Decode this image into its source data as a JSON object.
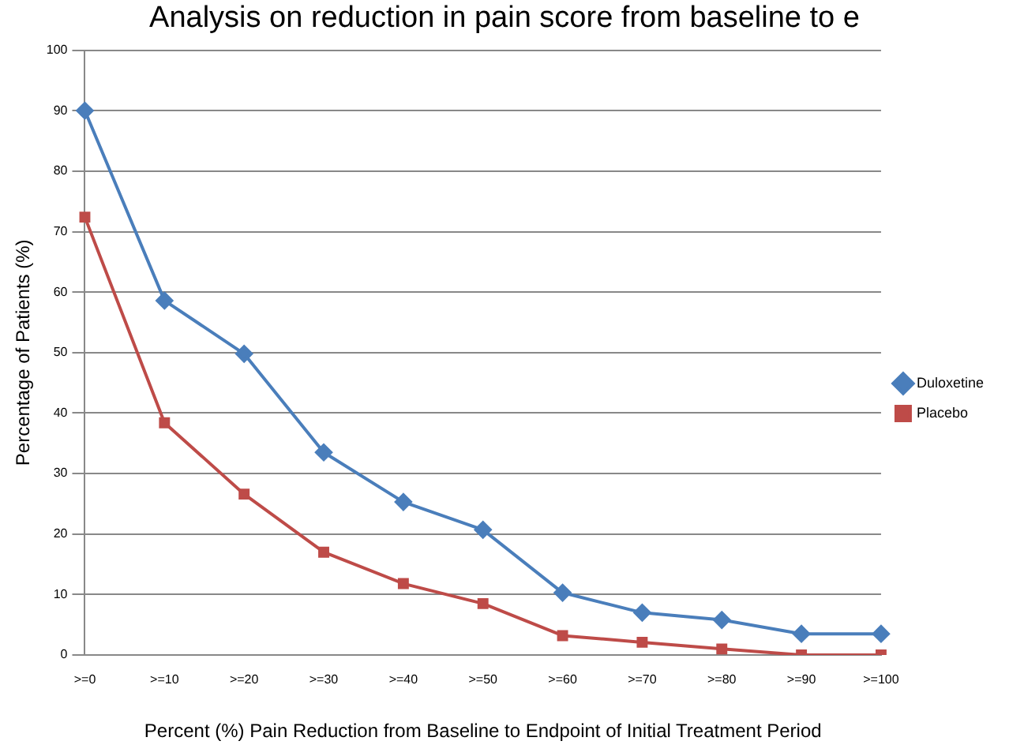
{
  "chart_data": {
    "type": "line",
    "title": "Analysis on reduction in pain score from baseline to e",
    "xlabel": "Percent (%) Pain Reduction from Baseline to Endpoint of Initial Treatment Period",
    "ylabel": "Percentage of Patients (%)",
    "categories": [
      ">=0",
      ">=10",
      ">=20",
      ">=30",
      ">=40",
      ">=50",
      ">=60",
      ">=70",
      ">=80",
      ">=90",
      ">=100"
    ],
    "series": [
      {
        "name": "Duloxetine",
        "color": "#4a7ebb",
        "marker": "diamond",
        "values": [
          90,
          58.6,
          49.8,
          33.5,
          25.3,
          20.7,
          10.3,
          7,
          5.8,
          3.5,
          3.5
        ]
      },
      {
        "name": "Placebo",
        "color": "#be4b48",
        "marker": "square",
        "values": [
          72.4,
          38.4,
          26.6,
          17,
          11.8,
          8.5,
          3.2,
          2.1,
          1,
          0,
          0
        ]
      }
    ],
    "ylim": [
      0,
      100
    ],
    "yticks": [
      0,
      10,
      20,
      30,
      40,
      50,
      60,
      70,
      80,
      90,
      100
    ],
    "grid": "y",
    "legend": "right",
    "line_style": "solid"
  }
}
